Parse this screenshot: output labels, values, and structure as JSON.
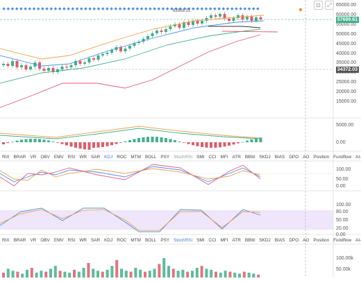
{
  "main_axis": {
    "ticks": [
      "65000.00",
      "60000.00",
      "55000.00",
      "50000.00",
      "45000.00",
      "40000.00",
      "35000.00",
      "30000.00",
      "25000.00",
      "20000.00",
      "15000.00"
    ],
    "current_price": "57689.61",
    "ref_price": "34372.03",
    "marker_label": "62856.31"
  },
  "macd_axis": {
    "ticks": [
      "5000.00",
      "0.00"
    ]
  },
  "indicator_tabs_1": {
    "items": [
      "RIX",
      "BRAR",
      "VR",
      "OBV",
      "EMV",
      "RSI",
      "WR",
      "SAR",
      "KDJ",
      "ROC",
      "MTM",
      "BOLL",
      "PSY",
      "StochRSI",
      "SMI",
      "CCI",
      "MFI",
      "ATR",
      "BBW",
      "SKDJ",
      "BIAS",
      "DPO",
      "AO",
      "Position",
      "Fundflow",
      "AI-NetVOL"
    ],
    "active": "KDJ"
  },
  "kdj_axis": {
    "ticks": [
      "100.00",
      "50.00",
      "0.00"
    ]
  },
  "indicator_tabs_2": {
    "items": [
      "RIX",
      "BRAR",
      "VR",
      "OBV",
      "EMV",
      "RSI",
      "WR",
      "SAR",
      "KDJ",
      "ROC",
      "MTM",
      "BOLL",
      "PSY",
      "StochRSI",
      "SMI",
      "CCI",
      "MFI",
      "ATR",
      "BBW",
      "SKDJ",
      "BIAS",
      "DPO",
      "AO",
      "Position",
      "Fundflow",
      "AI-NetVOL"
    ],
    "active": "StochRSI"
  },
  "stochrsi_axis": {
    "ticks": [
      "100.00",
      "80.00",
      "50.00",
      "20.00",
      "0.00"
    ]
  },
  "volume_axis": {
    "ticks": [
      "100.00k",
      "50.00k"
    ]
  },
  "colors": {
    "up": "#3fb08a",
    "down": "#e05a6a",
    "accent": "#3b7bd4",
    "orange": "#f28a2e"
  }
}
